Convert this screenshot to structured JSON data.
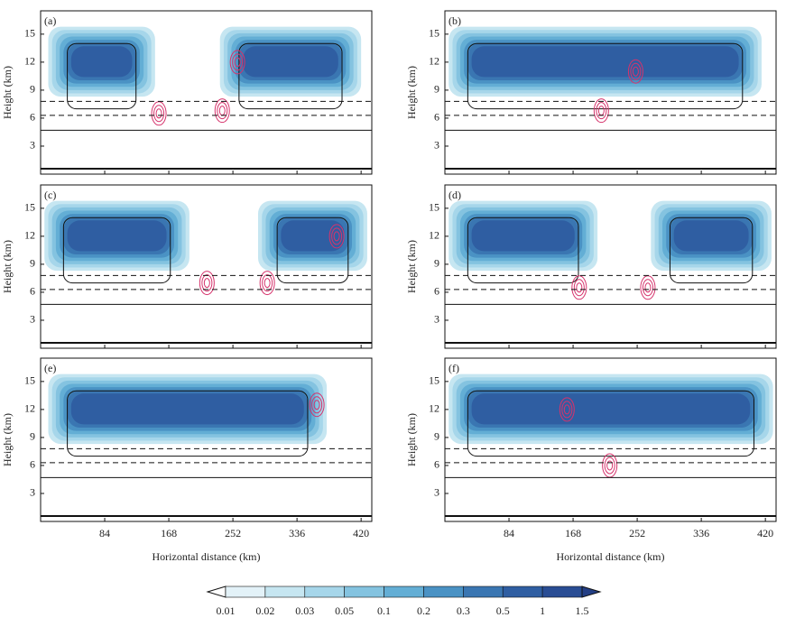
{
  "chart_data": [
    {
      "type": "contour",
      "panel_label": "(a)",
      "ylabel": "Height (km)",
      "ylim": [
        0,
        17.5
      ],
      "yticks": [
        3,
        6,
        9,
        12,
        15
      ],
      "xlim": [
        0,
        434
      ],
      "xticks": [
        84,
        168,
        252,
        336,
        420
      ]
    },
    {
      "type": "contour",
      "panel_label": "(b)",
      "ylabel": "Height (km)",
      "ylim": [
        0,
        17.5
      ],
      "yticks": [
        3,
        6,
        9,
        12,
        15
      ],
      "xlim": [
        0,
        434
      ],
      "xticks": [
        84,
        168,
        252,
        336,
        420
      ]
    },
    {
      "type": "contour",
      "panel_label": "(c)",
      "ylabel": "Height (km)",
      "ylim": [
        0,
        17.5
      ],
      "yticks": [
        3,
        6,
        9,
        12,
        15
      ],
      "xlim": [
        0,
        434
      ],
      "xticks": [
        84,
        168,
        252,
        336,
        420
      ]
    },
    {
      "type": "contour",
      "panel_label": "(d)",
      "ylabel": "Height (km)",
      "ylim": [
        0,
        17.5
      ],
      "yticks": [
        3,
        6,
        9,
        12,
        15
      ],
      "xlim": [
        0,
        434
      ],
      "xticks": [
        84,
        168,
        252,
        336,
        420
      ]
    },
    {
      "type": "contour",
      "panel_label": "(e)",
      "ylabel": "Height (km)",
      "xlabel": "Horizontal distance (km)",
      "ylim": [
        0,
        17.5
      ],
      "yticks": [
        3,
        6,
        9,
        12,
        15
      ],
      "xlim": [
        0,
        434
      ],
      "xticks": [
        84,
        168,
        252,
        336,
        420
      ]
    },
    {
      "type": "contour",
      "panel_label": "(f)",
      "ylabel": "Height (km)",
      "xlabel": "Horizontal distance (km)",
      "ylim": [
        0,
        17.5
      ],
      "yticks": [
        3,
        6,
        9,
        12,
        15
      ],
      "xlim": [
        0,
        434
      ],
      "xticks": [
        84,
        168,
        252,
        336,
        420
      ]
    }
  ],
  "colorbar": {
    "levels": [
      0.01,
      0.02,
      0.03,
      0.05,
      0.1,
      0.2,
      0.3,
      0.5,
      1.0,
      1.5
    ],
    "colors": [
      "#ffffff",
      "#e3f2f8",
      "#c6e6f1",
      "#a6d6ea",
      "#84c3e0",
      "#63aed5",
      "#4a92c4",
      "#3a76b2",
      "#2f5ea2",
      "#294d94",
      "#243f85"
    ]
  }
}
